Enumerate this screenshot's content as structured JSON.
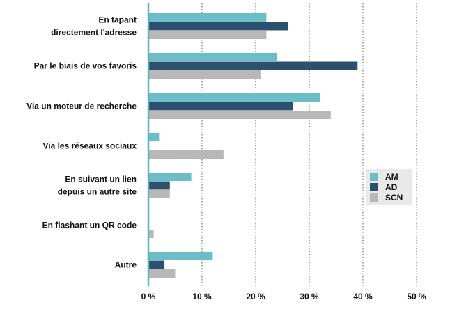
{
  "chart_data": {
    "type": "bar",
    "orientation": "horizontal",
    "title": "",
    "xlabel": "",
    "ylabel": "",
    "categories": [
      "En tapant\ndirectement l'adresse",
      "Par le biais de vos favoris",
      "Via un moteur de recherche",
      "Via les réseaux sociaux",
      "En suivant un lien\ndepuis un autre site",
      "En flashant un QR code",
      "Autre"
    ],
    "series": [
      {
        "name": "AM",
        "color": "#6bbdc6",
        "values": [
          22,
          24,
          32,
          2,
          8,
          0,
          12
        ]
      },
      {
        "name": "AD",
        "color": "#2c5070",
        "values": [
          26,
          39,
          27,
          0,
          4,
          0,
          3
        ]
      },
      {
        "name": "SCN",
        "color": "#b8b8b8",
        "values": [
          22,
          21,
          34,
          14,
          4,
          1,
          5
        ]
      }
    ],
    "xlim": [
      0,
      50
    ],
    "xticks": [
      0,
      10,
      20,
      30,
      40,
      50
    ],
    "xtick_labels": [
      "0 %",
      "10 %",
      "20 %",
      "30 %",
      "40 %",
      "50 %"
    ],
    "grid": "vertical dotted",
    "legend_position": "right",
    "legend_background": "#e9e9e9",
    "axis_color": "#5ab4bf"
  }
}
